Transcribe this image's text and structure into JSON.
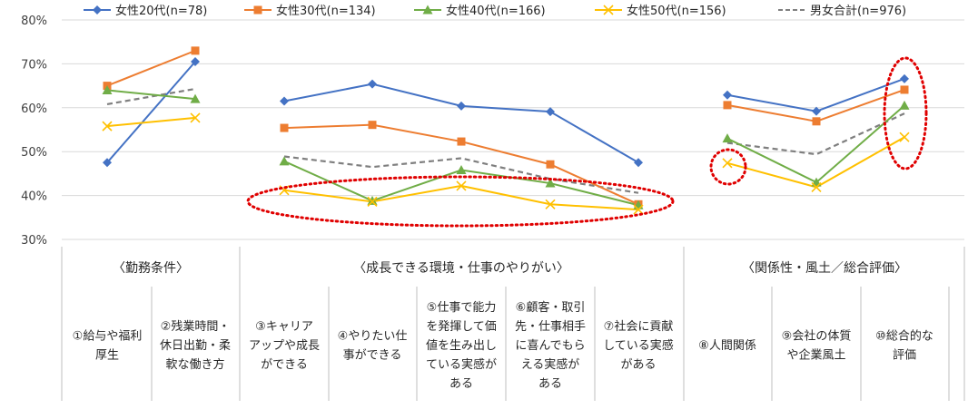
{
  "chart_data": {
    "type": "line",
    "y_axis": {
      "min": 0.3,
      "max": 0.8,
      "step": 0.1,
      "tick_labels": [
        "30%",
        "40%",
        "50%",
        "60%",
        "70%",
        "80%"
      ]
    },
    "legend": [
      {
        "name": "女性20代(n=78)",
        "color": "#4472C4",
        "marker": "diamond",
        "dash": false
      },
      {
        "name": "女性30代(n=134)",
        "color": "#ED7D31",
        "marker": "square",
        "dash": false
      },
      {
        "name": "女性40代(n=166)",
        "color": "#70AD47",
        "marker": "triangle",
        "dash": false
      },
      {
        "name": "女性50代(n=156)",
        "color": "#FFC000",
        "marker": "x",
        "dash": false
      },
      {
        "name": "男女合計(n=976)",
        "color": "#7F7F7F",
        "marker": "none",
        "dash": true
      }
    ],
    "groups": [
      {
        "title": "〈勤務条件〉",
        "categories": [
          [
            "①給与や福利",
            "厚生"
          ],
          [
            "②残業時間・",
            "休日出勤・柔",
            "軟な働き方"
          ]
        ],
        "series": [
          [
            0.475,
            0.705
          ],
          [
            0.65,
            0.73
          ],
          [
            0.64,
            0.62
          ],
          [
            0.558,
            0.577
          ],
          [
            0.608,
            0.643
          ]
        ]
      },
      {
        "title": "〈成長できる環境・仕事のやりがい〉",
        "categories": [
          [
            "③キャリア",
            "アップや成長",
            "ができる"
          ],
          [
            "④やりたい仕",
            "事ができる"
          ],
          [
            "⑤仕事で能力",
            "を発揮して価",
            "値を生み出し",
            "ている実感が",
            "ある"
          ],
          [
            "⑥顧客・取引",
            "先・仕事相手",
            "に喜んでもら",
            "える実感が",
            "ある"
          ],
          [
            "⑦社会に貢献",
            "している実感",
            "がある"
          ]
        ],
        "series": [
          [
            0.615,
            0.654,
            0.604,
            0.591,
            0.475
          ],
          [
            0.554,
            0.561,
            0.523,
            0.471,
            0.38
          ],
          [
            0.478,
            0.388,
            0.458,
            0.428,
            0.378
          ],
          [
            0.412,
            0.386,
            0.422,
            0.38,
            0.368
          ],
          [
            0.489,
            0.465,
            0.485,
            0.438,
            0.406
          ]
        ]
      },
      {
        "title": "〈関係性・風土／総合評価〉",
        "categories": [
          [
            "⑧人間関係"
          ],
          [
            "⑨会社の体質",
            "や企業風土"
          ],
          [
            "⑩総合的な",
            "評価"
          ]
        ],
        "series": [
          [
            0.629,
            0.592,
            0.666
          ],
          [
            0.606,
            0.569,
            0.641
          ],
          [
            0.53,
            0.43,
            0.605
          ],
          [
            0.474,
            0.419,
            0.533
          ],
          [
            0.52,
            0.494,
            0.587
          ]
        ]
      }
    ],
    "annotations": [
      "red-dotted-ellipse-around-40s-50s-growth-items",
      "red-dotted-circle-at-relationships-50s",
      "red-dotted-ellipse-at-overall-evaluation"
    ],
    "grid": true
  }
}
